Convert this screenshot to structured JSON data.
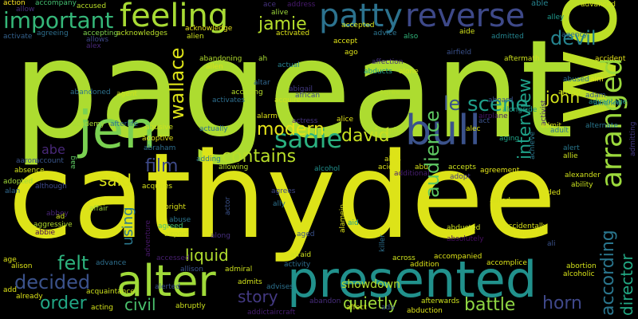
{
  "words": [
    {
      "text": "pageant",
      "color": "#addc30"
    },
    {
      "text": "cathydee",
      "color": "#dde318"
    },
    {
      "text": "woo",
      "color": "#bddf26"
    },
    {
      "text": "jen",
      "color": "#7ad151"
    },
    {
      "text": "bull",
      "color": "#3b528b"
    },
    {
      "text": "presented",
      "color": "#21918c"
    },
    {
      "text": "alter",
      "color": "#a0da39"
    },
    {
      "text": "arranged",
      "color": "#9bd93c"
    },
    {
      "text": "feeling",
      "color": "#a8db34"
    },
    {
      "text": "patty",
      "color": "#2c728e"
    },
    {
      "text": "reverse",
      "color": "#3e4989"
    },
    {
      "text": "sadie",
      "color": "#2ab07f"
    },
    {
      "text": "important",
      "color": "#35b779"
    },
    {
      "text": "devil",
      "color": "#25838e"
    },
    {
      "text": "jamie",
      "color": "#b5de2b"
    },
    {
      "text": "scene",
      "color": "#1f9e89"
    },
    {
      "text": "le",
      "color": "#3b528b"
    },
    {
      "text": "audience",
      "color": "#5ec962"
    },
    {
      "text": "interview",
      "color": "#1fa188"
    },
    {
      "text": "john",
      "color": "#d2e21b"
    },
    {
      "text": "wallace",
      "color": "#dde318"
    },
    {
      "text": "modern",
      "color": "#e5e419"
    },
    {
      "text": "david",
      "color": "#c8e020"
    },
    {
      "text": "contains",
      "color": "#b8de29"
    },
    {
      "text": "film",
      "color": "#3e4a89"
    },
    {
      "text": "said",
      "color": "#d8e219"
    },
    {
      "text": "using",
      "color": "#2a788e"
    },
    {
      "text": "liquid",
      "color": "#b0dd2f"
    },
    {
      "text": "felt",
      "color": "#2db27d"
    },
    {
      "text": "decided",
      "color": "#3b528b"
    },
    {
      "text": "order",
      "color": "#22a785"
    },
    {
      "text": "story",
      "color": "#443a83"
    },
    {
      "text": "civil",
      "color": "#4ac16d"
    },
    {
      "text": "quietly",
      "color": "#9fda3a"
    },
    {
      "text": "battle",
      "color": "#90d743"
    },
    {
      "text": "horn",
      "color": "#3f4889"
    },
    {
      "text": "according",
      "color": "#2a768e"
    },
    {
      "text": "director",
      "color": "#22a884"
    },
    {
      "text": "showdown",
      "color": "#b2dd2d"
    },
    {
      "text": "abe",
      "color": "#482878"
    },
    {
      "text": "action",
      "color": "#fde725"
    },
    {
      "text": "accompany",
      "color": "#44bf70"
    },
    {
      "text": "accused",
      "color": "#bade28"
    },
    {
      "text": "ace",
      "color": "#46337f"
    },
    {
      "text": "address",
      "color": "#481b6d"
    },
    {
      "text": "alive",
      "color": "#9dd93b"
    },
    {
      "text": "able",
      "color": "#26828e"
    },
    {
      "text": "advanced",
      "color": "#d0e11c"
    },
    {
      "text": "allow",
      "color": "#472d7b"
    },
    {
      "text": "accepted",
      "color": "#d5e21a"
    },
    {
      "text": "advice",
      "color": "#2c738e"
    },
    {
      "text": "alley",
      "color": "#1f988b"
    },
    {
      "text": "activate",
      "color": "#34618d"
    },
    {
      "text": "agreeing",
      "color": "#2e6f8e"
    },
    {
      "text": "accepting",
      "color": "#7fd34e"
    },
    {
      "text": "acknowledges",
      "color": "#b8de29"
    },
    {
      "text": "acknowledge",
      "color": "#e7e419"
    },
    {
      "text": "activated",
      "color": "#dde318"
    },
    {
      "text": "accept",
      "color": "#e2e418"
    },
    {
      "text": "also",
      "color": "#31b57b"
    },
    {
      "text": "aide",
      "color": "#d2e21b"
    },
    {
      "text": "admitted",
      "color": "#25848e"
    },
    {
      "text": "agency",
      "color": "#2e6d8e"
    },
    {
      "text": "allows",
      "color": "#3e4989"
    },
    {
      "text": "alien",
      "color": "#cde11d"
    },
    {
      "text": "ago",
      "color": "#dde318"
    },
    {
      "text": "airfield",
      "color": "#3b518b"
    },
    {
      "text": "aftermath",
      "color": "#cde11d"
    },
    {
      "text": "accident",
      "color": "#e5e419"
    },
    {
      "text": "abandoning",
      "color": "#b2dd2d"
    },
    {
      "text": "allen",
      "color": "#d8e219"
    },
    {
      "text": "ah",
      "color": "#a8db34"
    },
    {
      "text": "actual",
      "color": "#26818e"
    },
    {
      "text": "affection",
      "color": "#46327e"
    },
    {
      "text": "abducts",
      "color": "#1f9a8a"
    },
    {
      "text": "alone",
      "color": "#d2e21b"
    },
    {
      "text": "abused",
      "color": "#2d708e"
    },
    {
      "text": "aim",
      "color": "#e7e419"
    },
    {
      "text": "ahead",
      "color": "#cde11d"
    },
    {
      "text": "adam",
      "color": "#38598c"
    },
    {
      "text": "alliance",
      "color": "#25848e"
    },
    {
      "text": "advantage",
      "color": "#21918c"
    },
    {
      "text": "abigail",
      "color": "#443b84"
    },
    {
      "text": "african",
      "color": "#404588"
    },
    {
      "text": "agree",
      "color": "#b8de29"
    },
    {
      "text": "aboard",
      "color": "#3a548c"
    },
    {
      "text": "alongside",
      "color": "#1e9b8a"
    },
    {
      "text": "abandoned",
      "color": "#2d718e"
    },
    {
      "text": "agent",
      "color": "#cde11d"
    },
    {
      "text": "activates",
      "color": "#2e6e8e"
    },
    {
      "text": "accusing",
      "color": "#b5de2b"
    },
    {
      "text": "acquire",
      "color": "#cde11d"
    },
    {
      "text": "altar",
      "color": "#31668e"
    },
    {
      "text": "alex",
      "color": "#482878"
    },
    {
      "text": "alarm",
      "color": "#dde318"
    },
    {
      "text": "alice",
      "color": "#e2e418"
    },
    {
      "text": "alec",
      "color": "#dde318"
    },
    {
      "text": "airplane",
      "color": "#481769"
    },
    {
      "text": "act",
      "color": "#3b528b"
    },
    {
      "text": "aging",
      "color": "#20a386"
    },
    {
      "text": "achieve",
      "color": "#2a778e"
    },
    {
      "text": "activist",
      "color": "#481f71"
    },
    {
      "text": "adult",
      "color": "#2d708e"
    },
    {
      "text": "admitting",
      "color": "#443983"
    },
    {
      "text": "alert",
      "color": "#2a788e"
    },
    {
      "text": "allie",
      "color": "#cde11d"
    },
    {
      "text": "admit",
      "color": "#d5e21a"
    },
    {
      "text": "alternate",
      "color": "#2a778e"
    },
    {
      "text": "academy",
      "color": "#a8db34"
    },
    {
      "text": "afterlife",
      "color": "#2e6f8e"
    },
    {
      "text": "abusive",
      "color": "#cde11d"
    },
    {
      "text": "adoptive",
      "color": "#e2e418"
    },
    {
      "text": "abraham",
      "color": "#2e6e8e"
    },
    {
      "text": "actually",
      "color": "#2d718e"
    },
    {
      "text": "actress",
      "color": "#46327e"
    },
    {
      "text": "alpha",
      "color": "#b5de2b"
    },
    {
      "text": "alias",
      "color": "#dde318"
    },
    {
      "text": "abu",
      "color": "#d8e219"
    },
    {
      "text": "accepts",
      "color": "#cde11d"
    },
    {
      "text": "agreement",
      "color": "#e2e418"
    },
    {
      "text": "alexander",
      "color": "#d0e11c"
    },
    {
      "text": "ability",
      "color": "#c8e020"
    },
    {
      "text": "aided",
      "color": "#dde318"
    },
    {
      "text": "alfred",
      "color": "#d8e219"
    },
    {
      "text": "accidentally",
      "color": "#d8e219"
    },
    {
      "text": "almost",
      "color": "#e2e418"
    },
    {
      "text": "adding",
      "color": "#2a778e"
    },
    {
      "text": "allowing",
      "color": "#b8de29"
    },
    {
      "text": "alcohol",
      "color": "#21908d"
    },
    {
      "text": "acid",
      "color": "#dde318"
    },
    {
      "text": "additional",
      "color": "#481f71"
    },
    {
      "text": "adopt",
      "color": "#443983"
    },
    {
      "text": "aaron",
      "color": "#3b528b"
    },
    {
      "text": "account",
      "color": "#39568c"
    },
    {
      "text": "absence",
      "color": "#d2e21b"
    },
    {
      "text": "adopted",
      "color": "#a0da39"
    },
    {
      "text": "although",
      "color": "#3e4989"
    },
    {
      "text": "aag",
      "color": "#5ec962"
    },
    {
      "text": "alan",
      "color": "#31688e"
    },
    {
      "text": "abbey",
      "color": "#482475"
    },
    {
      "text": "affair",
      "color": "#a0da39"
    },
    {
      "text": "albright",
      "color": "#dde318"
    },
    {
      "text": "abuse",
      "color": "#2b748e"
    },
    {
      "text": "agreed",
      "color": "#4ac16d"
    },
    {
      "text": "airport",
      "color": "#cde11d"
    },
    {
      "text": "ally",
      "color": "#2d718e"
    },
    {
      "text": "agrees",
      "color": "#3f4788"
    },
    {
      "text": "actor",
      "color": "#3b528b"
    },
    {
      "text": "alamein",
      "color": "#dde318"
    },
    {
      "text": "aid",
      "color": "#1f9e89"
    },
    {
      "text": "ad",
      "color": "#d2e21b"
    },
    {
      "text": "aggressive",
      "color": "#b2dd2d"
    },
    {
      "text": "abbie",
      "color": "#440154"
    },
    {
      "text": "adventure",
      "color": "#48186a"
    },
    {
      "text": "along",
      "color": "#472f7d"
    },
    {
      "text": "aged",
      "color": "#3b528b"
    },
    {
      "text": "abducted",
      "color": "#cde11d"
    },
    {
      "text": "absolutely",
      "color": "#470e61"
    },
    {
      "text": "ali",
      "color": "#3b528b"
    },
    {
      "text": "killer",
      "color": "#2d708e"
    },
    {
      "text": "age",
      "color": "#dde318"
    },
    {
      "text": "alison",
      "color": "#dde318"
    },
    {
      "text": "advance",
      "color": "#2e6f8e"
    },
    {
      "text": "accessed",
      "color": "#481f71"
    },
    {
      "text": "allison",
      "color": "#3b528b"
    },
    {
      "text": "admiral",
      "color": "#cde11d"
    },
    {
      "text": "afraid",
      "color": "#cde11d"
    },
    {
      "text": "activity",
      "color": "#2e6e8e"
    },
    {
      "text": "addition",
      "color": "#dde318"
    },
    {
      "text": "across",
      "color": "#cde11d"
    },
    {
      "text": "accompanied",
      "color": "#dde318"
    },
    {
      "text": "accomplice",
      "color": "#dde318"
    },
    {
      "text": "abortion",
      "color": "#d2e21b"
    },
    {
      "text": "alcoholic",
      "color": "#d8e219"
    },
    {
      "text": "add",
      "color": "#dde318"
    },
    {
      "text": "already",
      "color": "#dde318"
    },
    {
      "text": "acquaintance",
      "color": "#cde11d"
    },
    {
      "text": "alerted",
      "color": "#3b528b"
    },
    {
      "text": "admits",
      "color": "#d2e21b"
    },
    {
      "text": "advises",
      "color": "#2d718e"
    },
    {
      "text": "acting",
      "color": "#d5e21a"
    },
    {
      "text": "abruptly",
      "color": "#cde11d"
    },
    {
      "text": "abandon",
      "color": "#472d7b"
    },
    {
      "text": "afterwards",
      "color": "#cde11d"
    },
    {
      "text": "affect",
      "color": "#d2e21b"
    },
    {
      "text": "ada",
      "color": "#3b528b"
    },
    {
      "text": "abduction",
      "color": "#dde318"
    },
    {
      "text": "addict",
      "color": "#481f71"
    },
    {
      "text": "aircraft",
      "color": "#481f71"
    },
    {
      "text": "acquires",
      "color": "#d5e21a"
    }
  ]
}
